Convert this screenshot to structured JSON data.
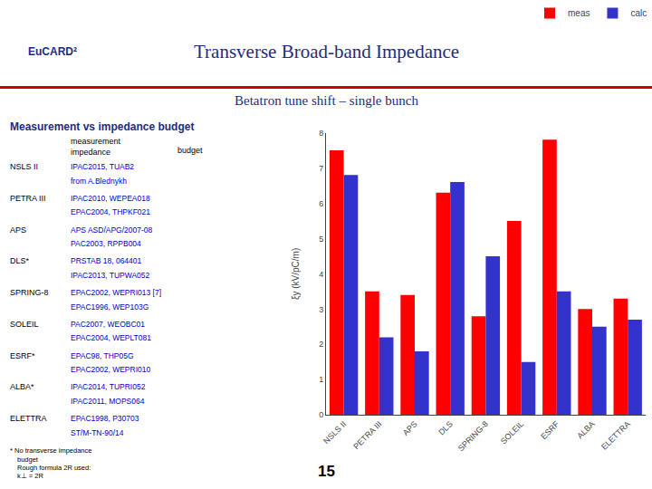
{
  "chart_data": {
    "type": "bar",
    "title": "Transverse Broad-band Impedance",
    "subtitle": "Betatron tune shift – single bunch",
    "ylabel": "ξy (kV/pC/m)",
    "categories": [
      "NSLS II",
      "PETRA III",
      "APS",
      "DLS",
      "SPRING-8",
      "SOLEIL",
      "ESRF",
      "ALBA",
      "ELETTRA"
    ],
    "series": [
      {
        "name": "meas",
        "color": "#FF0000",
        "values": [
          7.5,
          3.5,
          3.4,
          6.3,
          2.8,
          5.5,
          7.8,
          3.0,
          3.3
        ]
      },
      {
        "name": "calc",
        "color": "#3333CC",
        "values": [
          6.8,
          2.2,
          1.8,
          6.6,
          4.5,
          1.5,
          3.5,
          2.5,
          2.7
        ]
      }
    ],
    "ylim": [
      0,
      8
    ],
    "yticks": [
      0,
      1,
      2,
      3,
      4,
      5,
      6,
      7,
      8
    ],
    "grid": false,
    "legend": "upper right",
    "annotations": [
      "Measurement vs impedance budget",
      "measurement\nimpedance",
      "budget",
      "NSLS II",
      "IPAC2015, TUAB2",
      "from A.Blednykh",
      "PETRA III",
      "IPAC2010, WEPEA018",
      "EPAC2004, THPKF021",
      "APS",
      "APS ASD/APG/2007-08",
      "PAC2003, RPPB004",
      "DLS*",
      "PRSTAB 18, 064401",
      "IPAC2013, TUPWA052",
      "SPRING-8",
      "EPAC2002, WEPRI013 [7]",
      "EPAC1996, WEP103G",
      "SOLEIL",
      "PAC2007, WEOBC01",
      "EPAC2004, WEPLT081",
      "ESRF*",
      "EPAC98, THP05G",
      "EPAC2002, WEPRI010",
      "ALBA*",
      "IPAC2014, TUPRI052",
      "IPAC2011, MOPS064",
      "ELETTRA",
      "EPAC1998, P30703",
      "ST/M-TN-90/14",
      "* No transverse impedance",
      "budget",
      "Rough formula 2R used:",
      "k⊥ = 2R",
      "15",
      "EuCARD²"
    ]
  }
}
